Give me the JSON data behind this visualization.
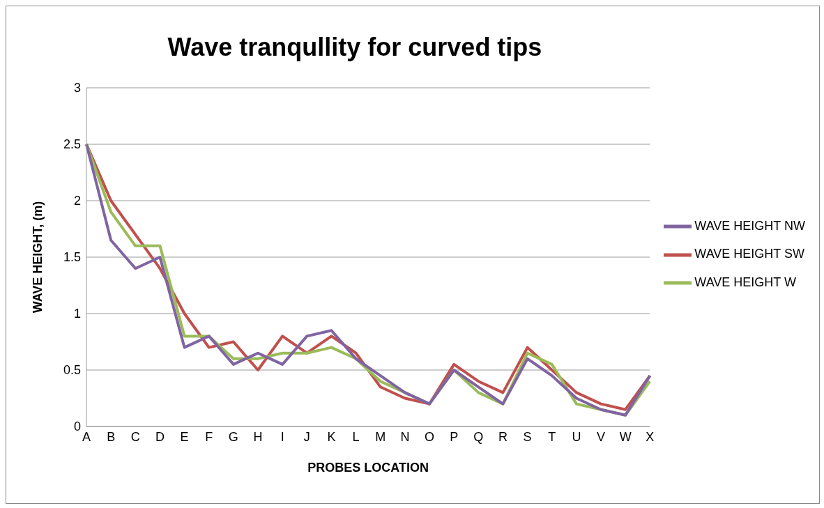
{
  "chart_data": {
    "type": "line",
    "title": "Wave tranqullity for curved tips",
    "xlabel": "PROBES LOCATION",
    "ylabel": "WAVE HEIGHT, (m)",
    "categories": [
      "A",
      "B",
      "C",
      "D",
      "E",
      "F",
      "G",
      "H",
      "I",
      "J",
      "K",
      "L",
      "M",
      "N",
      "O",
      "P",
      "Q",
      "R",
      "S",
      "T",
      "U",
      "V",
      "W",
      "X"
    ],
    "series": [
      {
        "name": "WAVE HEIGHT SW",
        "color": "#c0504d",
        "values": [
          2.5,
          2.0,
          1.7,
          1.4,
          1.0,
          0.7,
          0.75,
          0.5,
          0.8,
          0.65,
          0.8,
          0.65,
          0.35,
          0.25,
          0.2,
          0.55,
          0.4,
          0.3,
          0.7,
          0.5,
          0.3,
          0.2,
          0.15,
          0.45
        ]
      },
      {
        "name": "WAVE HEIGHT W",
        "color": "#9bbb59",
        "values": [
          2.5,
          1.9,
          1.6,
          1.6,
          0.8,
          0.8,
          0.6,
          0.6,
          0.65,
          0.65,
          0.7,
          0.6,
          0.4,
          0.3,
          0.2,
          0.5,
          0.3,
          0.2,
          0.65,
          0.55,
          0.2,
          0.15,
          0.1,
          0.4
        ]
      },
      {
        "name": "WAVE HEIGHT NW",
        "color": "#8064a2",
        "values": [
          2.5,
          1.65,
          1.4,
          1.5,
          0.7,
          0.8,
          0.55,
          0.65,
          0.55,
          0.8,
          0.85,
          0.6,
          0.45,
          0.3,
          0.2,
          0.5,
          0.35,
          0.2,
          0.6,
          0.45,
          0.25,
          0.15,
          0.1,
          0.45
        ]
      }
    ],
    "ylim": [
      0,
      3
    ],
    "yticks": [
      0,
      0.5,
      1,
      1.5,
      2,
      2.5,
      3
    ],
    "grid": "y",
    "legend": "right",
    "marker": "none",
    "line_style": "solid"
  }
}
